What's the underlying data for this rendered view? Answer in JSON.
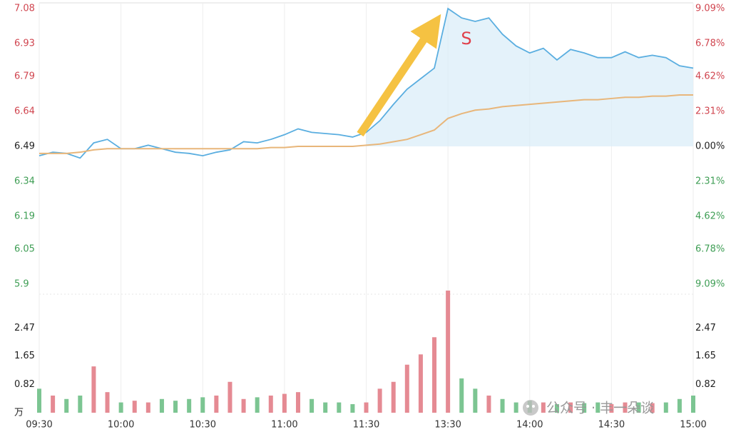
{
  "chart_data": [
    {
      "type": "line",
      "x": [
        "09:30",
        "09:35",
        "09:40",
        "09:45",
        "09:50",
        "09:55",
        "10:00",
        "10:05",
        "10:10",
        "10:15",
        "10:20",
        "10:25",
        "10:30",
        "10:35",
        "10:40",
        "10:45",
        "10:50",
        "10:55",
        "11:00",
        "11:05",
        "11:10",
        "11:15",
        "11:20",
        "11:25",
        "11:30",
        "13:05",
        "13:10",
        "13:15",
        "13:20",
        "13:25",
        "13:30",
        "13:35",
        "13:40",
        "13:45",
        "13:50",
        "13:55",
        "14:00",
        "14:05",
        "14:10",
        "14:15",
        "14:20",
        "14:25",
        "14:30",
        "14:35",
        "14:40",
        "14:45",
        "14:50",
        "14:55",
        "15:00"
      ],
      "xticks": [
        "09:30",
        "10:00",
        "10:30",
        "11:00",
        "11:30",
        "13:30",
        "14:00",
        "14:30",
        "15:00"
      ],
      "series": [
        {
          "color": "#5aaee0",
          "values": [
            6.45,
            6.465,
            6.46,
            6.44,
            6.505,
            6.52,
            6.48,
            6.48,
            6.495,
            6.48,
            6.465,
            6.46,
            6.45,
            6.465,
            6.475,
            6.51,
            6.505,
            6.52,
            6.54,
            6.565,
            6.55,
            6.545,
            6.54,
            6.53,
            6.55,
            6.6,
            6.67,
            6.735,
            6.78,
            6.825,
            7.08,
            7.04,
            7.025,
            7.04,
            6.97,
            6.92,
            6.89,
            6.91,
            6.86,
            6.905,
            6.89,
            6.87,
            6.87,
            6.895,
            6.87,
            6.88,
            6.87,
            6.835,
            6.825
          ]
        },
        {
          "color": "#e8b67a",
          "values": [
            6.46,
            6.46,
            6.46,
            6.465,
            6.475,
            6.48,
            6.48,
            6.48,
            6.48,
            6.48,
            6.48,
            6.48,
            6.48,
            6.48,
            6.48,
            6.48,
            6.48,
            6.485,
            6.485,
            6.49,
            6.49,
            6.49,
            6.49,
            6.49,
            6.495,
            6.5,
            6.51,
            6.52,
            6.54,
            6.56,
            6.61,
            6.63,
            6.645,
            6.65,
            6.66,
            6.665,
            6.67,
            6.675,
            6.68,
            6.685,
            6.69,
            6.69,
            6.695,
            6.7,
            6.7,
            6.705,
            6.705,
            6.71,
            6.71
          ]
        }
      ],
      "ylim": [
        5.9,
        7.08
      ],
      "yticks": [
        7.08,
        6.93,
        6.79,
        6.64,
        6.49,
        6.34,
        6.19,
        6.05,
        5.9
      ],
      "y2lim": [
        -9.09,
        9.09
      ],
      "y2ticks": [
        {
          "value": 9.09,
          "label": "9.09%"
        },
        {
          "value": 6.78,
          "label": "6.78%"
        },
        {
          "value": 4.62,
          "label": "4.62%"
        },
        {
          "value": 2.31,
          "label": "2.31%"
        },
        {
          "value": 0,
          "label": "0.00%"
        },
        {
          "value": -2.31,
          "label": "2.31%"
        },
        {
          "value": -4.62,
          "label": "4.62%"
        },
        {
          "value": -6.78,
          "label": "6.78%"
        },
        {
          "value": -9.09,
          "label": "9.09%"
        }
      ],
      "annotation": "S",
      "grid": true
    },
    {
      "type": "bar",
      "values": [
        0.7,
        0.5,
        0.4,
        0.5,
        1.35,
        0.6,
        0.3,
        0.35,
        0.3,
        0.4,
        0.35,
        0.4,
        0.45,
        0.5,
        0.9,
        0.4,
        0.45,
        0.5,
        0.55,
        0.6,
        0.4,
        0.3,
        0.3,
        0.25,
        0.3,
        0.7,
        0.9,
        1.4,
        1.7,
        2.2,
        3.56,
        1.0,
        0.7,
        0.5,
        0.4,
        0.3,
        0.35,
        0.3,
        0.25,
        0.3,
        0.28,
        0.3,
        0.25,
        0.3,
        0.3,
        0.28,
        0.3,
        0.4,
        0.5
      ],
      "ylim": [
        0,
        3.6
      ],
      "yticks": [
        {
          "value": 0,
          "label": "万"
        },
        0.82,
        1.65,
        2.47
      ],
      "y2ticks": [
        0.82,
        1.65,
        2.47
      ]
    }
  ],
  "watermark": "公众号 · 丰一朵谈"
}
